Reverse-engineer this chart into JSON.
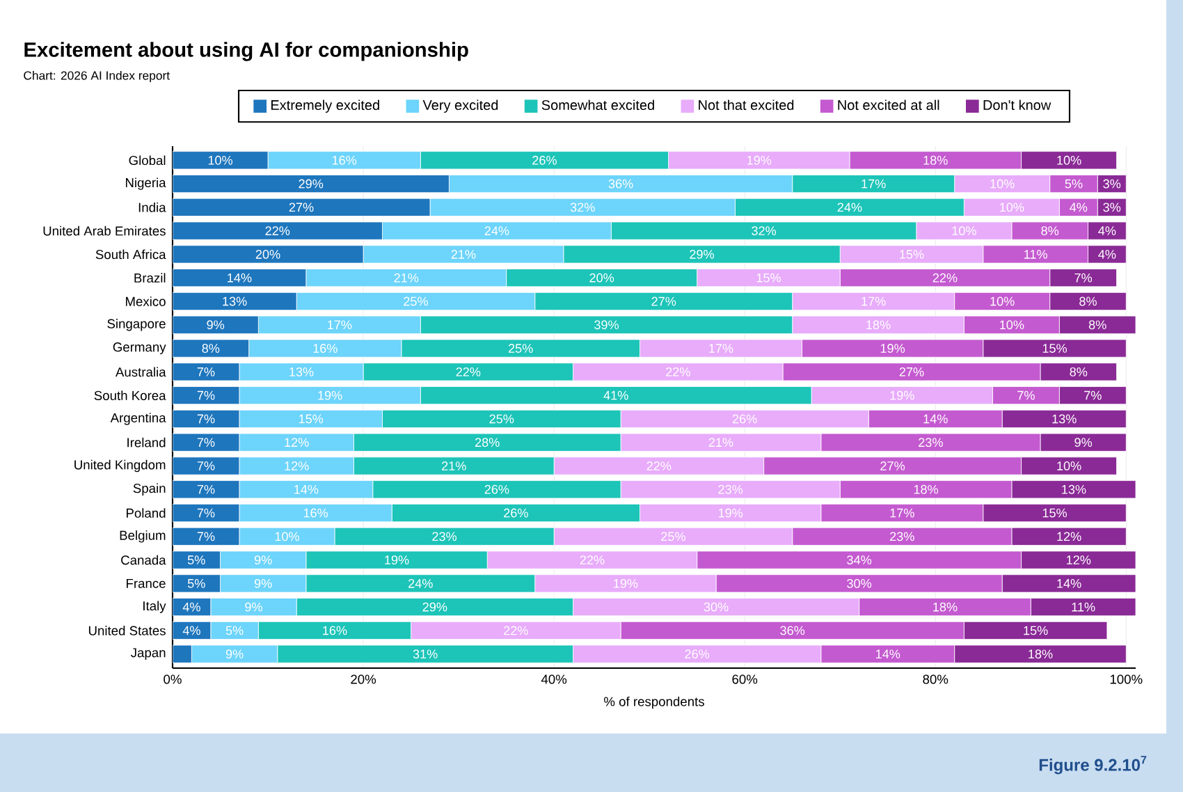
{
  "chart_data": {
    "type": "bar",
    "orientation": "horizontal",
    "stacked": true,
    "title": "Excitement about using AI for companionship",
    "subtitle": "Chart: 2026 AI Index report",
    "xlabel": "% of respondents",
    "annotations": [
      "Figure 9.2.10$^{7}$"
    ],
    "categories": [
      "Global",
      "Nigeria",
      "India",
      "United Arab Emirates",
      "South Africa",
      "Brazil",
      "Mexico",
      "Singapore",
      "Germany",
      "Australia",
      "South Korea",
      "Argentina",
      "Ireland",
      "United Kingdom",
      "Spain",
      "Poland",
      "Belgium",
      "Canada",
      "France",
      "Italy",
      "United States",
      "Japan"
    ],
    "series": [
      {
        "name": "Extremely excited",
        "color": "#1e76bd",
        "values": [
          10,
          29,
          27,
          22,
          20,
          14,
          13,
          9,
          8,
          7,
          7,
          7,
          7,
          7,
          7,
          7,
          7,
          5,
          5,
          4,
          4,
          2
        ],
        "value_labels": [
          "10%",
          "29%",
          "27%",
          "22%",
          "20%",
          "14%",
          "13%",
          "9%",
          "8%",
          "7%",
          "7%",
          "7%",
          "7%",
          "7%",
          "7%",
          "7%",
          "7%",
          "5%",
          "5%",
          "4%",
          "4%",
          null
        ]
      },
      {
        "name": "Very excited",
        "color": "#6dd4fb",
        "values": [
          16,
          36,
          32,
          24,
          21,
          21,
          25,
          17,
          16,
          13,
          19,
          15,
          12,
          12,
          14,
          16,
          10,
          9,
          9,
          9,
          5,
          9
        ],
        "value_labels": [
          "16%",
          "36%",
          "32%",
          "24%",
          "21%",
          "21%",
          "25%",
          "17%",
          "16%",
          "13%",
          "19%",
          "15%",
          "12%",
          "12%",
          "14%",
          "16%",
          "10%",
          "9%",
          "9%",
          "9%",
          "5%",
          "9%"
        ]
      },
      {
        "name": "Somewhat excited",
        "color": "#1dc4b8",
        "values": [
          26,
          17,
          24,
          32,
          29,
          20,
          27,
          39,
          25,
          22,
          41,
          25,
          28,
          21,
          26,
          26,
          23,
          19,
          24,
          29,
          16,
          31
        ],
        "value_labels": [
          "26%",
          "17%",
          "24%",
          "32%",
          "29%",
          "20%",
          "27%",
          "39%",
          "25%",
          "22%",
          "41%",
          "25%",
          "28%",
          "21%",
          "26%",
          "26%",
          "23%",
          "19%",
          "24%",
          "29%",
          "16%",
          "31%"
        ]
      },
      {
        "name": "Not that excited",
        "color": "#e8acfb",
        "values": [
          19,
          10,
          10,
          10,
          15,
          15,
          17,
          18,
          17,
          22,
          19,
          26,
          21,
          22,
          23,
          19,
          25,
          22,
          19,
          30,
          22,
          26
        ],
        "value_labels": [
          "19%",
          "10%",
          "10%",
          "10%",
          "15%",
          "15%",
          "17%",
          "18%",
          "17%",
          "22%",
          "19%",
          "26%",
          "21%",
          "22%",
          "23%",
          "19%",
          "25%",
          "22%",
          "19%",
          "30%",
          "22%",
          "26%"
        ]
      },
      {
        "name": "Not excited at all",
        "color": "#c45ad0",
        "values": [
          18,
          5,
          4,
          8,
          11,
          22,
          10,
          10,
          19,
          27,
          7,
          14,
          23,
          27,
          18,
          17,
          23,
          34,
          30,
          18,
          36,
          14
        ],
        "value_labels": [
          "18%",
          "5%",
          "4%",
          "8%",
          "11%",
          "22%",
          "10%",
          "10%",
          "19%",
          "27%",
          "7%",
          "14%",
          "23%",
          "27%",
          "18%",
          "17%",
          "23%",
          "34%",
          "30%",
          "18%",
          "36%",
          "14%"
        ]
      },
      {
        "name": "Don't know",
        "color": "#8a2a96",
        "values": [
          10,
          3,
          3,
          4,
          4,
          7,
          8,
          8,
          15,
          8,
          7,
          13,
          9,
          10,
          13,
          15,
          12,
          12,
          14,
          11,
          15,
          18
        ],
        "value_labels": [
          "10%",
          "3%",
          "3%",
          "4%",
          "4%",
          "7%",
          "8%",
          "8%",
          "15%",
          "8%",
          "7%",
          "13%",
          "9%",
          "10%",
          "13%",
          "15%",
          "12%",
          "12%",
          "14%",
          "11%",
          "15%",
          "18%"
        ]
      }
    ],
    "xlim": [
      0,
      101
    ],
    "xticks": [
      {
        "value": 0,
        "label": "0%"
      },
      {
        "value": 20,
        "label": "20%"
      },
      {
        "value": 40,
        "label": "40%"
      },
      {
        "value": 60,
        "label": "60%"
      },
      {
        "value": 80,
        "label": "80%"
      },
      {
        "value": 100,
        "label": "100%"
      }
    ],
    "grid": "x",
    "legend": "top"
  }
}
